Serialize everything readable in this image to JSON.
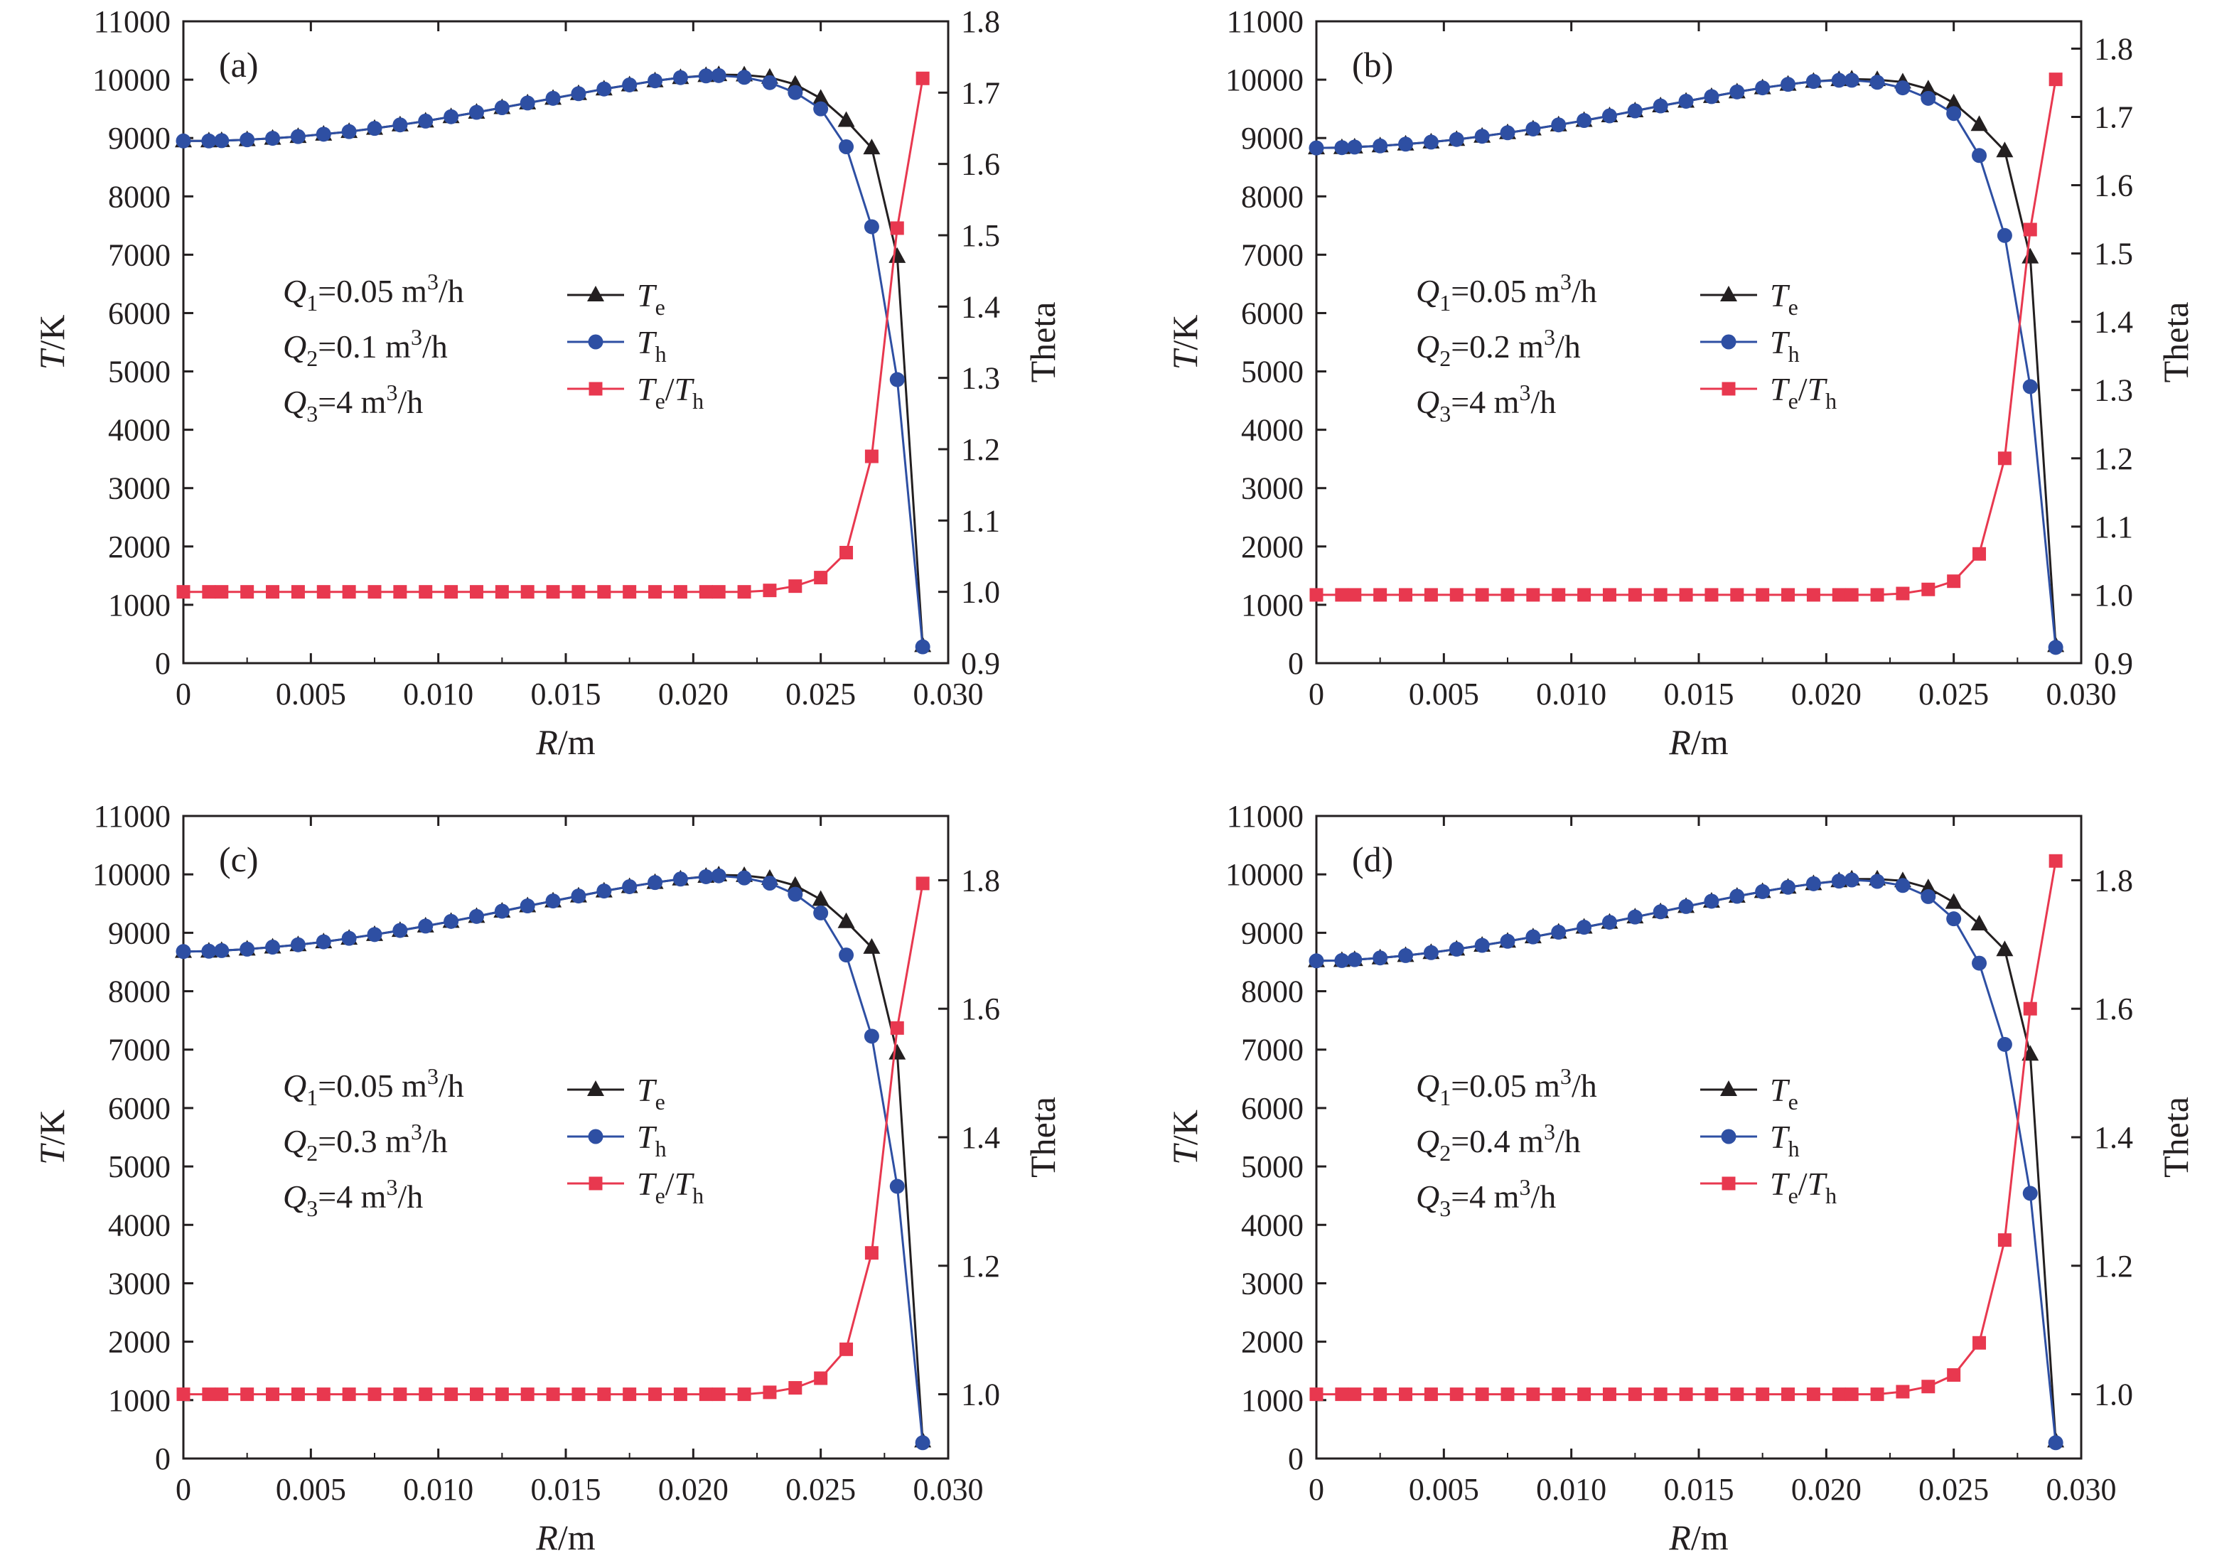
{
  "chart_data": [
    {
      "type": "line",
      "panel": "(a)",
      "xlabel": "R/m",
      "ylabel": "T/K",
      "y2label": "Theta",
      "xlim": [
        0,
        0.03
      ],
      "ylim": [
        0,
        11000
      ],
      "y2lim": [
        0.9,
        1.8
      ],
      "xticks": [
        "0",
        "0.005",
        "0.010",
        "0.015",
        "0.020",
        "0.025",
        "0.030"
      ],
      "yticks": [
        "0",
        "1000",
        "2000",
        "3000",
        "4000",
        "5000",
        "6000",
        "7000",
        "8000",
        "9000",
        "10000",
        "11000"
      ],
      "y2ticks": [
        "0.9",
        "1.0",
        "1.1",
        "1.2",
        "1.3",
        "1.4",
        "1.5",
        "1.6",
        "1.7",
        "1.8"
      ],
      "conditions": [
        {
          "q": "Q",
          "sub": "1",
          "val": "=0.05 m",
          "sup": "3",
          "unit": "/h"
        },
        {
          "q": "Q",
          "sub": "2",
          "val": "=0.1 m",
          "sup": "3",
          "unit": "/h"
        },
        {
          "q": "Q",
          "sub": "3",
          "val": "=4 m",
          "sup": "3",
          "unit": "/h"
        }
      ],
      "x": [
        0,
        0.001,
        0.0015,
        0.0025,
        0.0035,
        0.0045,
        0.0055,
        0.0065,
        0.0075,
        0.0085,
        0.0095,
        0.0105,
        0.0115,
        0.0125,
        0.0135,
        0.0145,
        0.0155,
        0.0165,
        0.0175,
        0.0185,
        0.0195,
        0.0205,
        0.021,
        0.022,
        0.023,
        0.024,
        0.025,
        0.026,
        0.027,
        0.028,
        0.029
      ],
      "series": [
        {
          "name": "Te",
          "axis": "left",
          "marker": "triangle",
          "color": "#231f20",
          "values": [
            8950,
            8950,
            8955,
            8970,
            8995,
            9025,
            9065,
            9110,
            9165,
            9225,
            9290,
            9365,
            9440,
            9520,
            9600,
            9680,
            9760,
            9840,
            9910,
            9980,
            10035,
            10070,
            10085,
            10080,
            10040,
            9920,
            9680,
            9300,
            8830,
            6970,
            300
          ]
        },
        {
          "name": "Th",
          "axis": "left",
          "marker": "circle",
          "color": "#2e4fa3",
          "values": [
            8950,
            8950,
            8955,
            8970,
            8995,
            9025,
            9065,
            9110,
            9165,
            9225,
            9290,
            9365,
            9440,
            9520,
            9600,
            9680,
            9760,
            9840,
            9910,
            9980,
            10035,
            10065,
            10070,
            10040,
            9950,
            9780,
            9500,
            8850,
            7480,
            4860,
            280
          ]
        },
        {
          "name": "Te/Th",
          "axis": "right",
          "marker": "square",
          "color": "#e8384f",
          "values": [
            1.0,
            1.0,
            1.0,
            1.0,
            1.0,
            1.0,
            1.0,
            1.0,
            1.0,
            1.0,
            1.0,
            1.0,
            1.0,
            1.0,
            1.0,
            1.0,
            1.0,
            1.0,
            1.0,
            1.0,
            1.0,
            1.0,
            1.0,
            1.0,
            1.002,
            1.008,
            1.02,
            1.055,
            1.19,
            1.51,
            1.72
          ]
        }
      ]
    },
    {
      "type": "line",
      "panel": "(b)",
      "xlabel": "R/m",
      "ylabel": "T/K",
      "y2label": "Theta",
      "xlim": [
        0,
        0.03
      ],
      "ylim": [
        0,
        11000
      ],
      "y2lim": [
        0.9,
        1.84
      ],
      "xticks": [
        "0",
        "0.005",
        "0.010",
        "0.015",
        "0.020",
        "0.025",
        "0.030"
      ],
      "yticks": [
        "0",
        "1000",
        "2000",
        "3000",
        "4000",
        "5000",
        "6000",
        "7000",
        "8000",
        "9000",
        "10000",
        "11000"
      ],
      "y2ticks": [
        "0.9",
        "1.0",
        "1.1",
        "1.2",
        "1.3",
        "1.4",
        "1.5",
        "1.6",
        "1.7",
        "1.8"
      ],
      "conditions": [
        {
          "q": "Q",
          "sub": "1",
          "val": "=0.05 m",
          "sup": "3",
          "unit": "/h"
        },
        {
          "q": "Q",
          "sub": "2",
          "val": "=0.2 m",
          "sup": "3",
          "unit": "/h"
        },
        {
          "q": "Q",
          "sub": "3",
          "val": "=4 m",
          "sup": "3",
          "unit": "/h"
        }
      ],
      "x": [
        0,
        0.001,
        0.0015,
        0.0025,
        0.0035,
        0.0045,
        0.0055,
        0.0065,
        0.0075,
        0.0085,
        0.0095,
        0.0105,
        0.0115,
        0.0125,
        0.0135,
        0.0145,
        0.0155,
        0.0165,
        0.0175,
        0.0185,
        0.0195,
        0.0205,
        0.021,
        0.022,
        0.023,
        0.024,
        0.025,
        0.026,
        0.027,
        0.028,
        0.029
      ],
      "series": [
        {
          "name": "Te",
          "axis": "left",
          "marker": "triangle",
          "color": "#231f20",
          "values": [
            8830,
            8835,
            8845,
            8865,
            8895,
            8930,
            8975,
            9030,
            9090,
            9155,
            9225,
            9300,
            9380,
            9465,
            9550,
            9630,
            9710,
            9790,
            9860,
            9920,
            9970,
            10000,
            10010,
            10000,
            9960,
            9840,
            9600,
            9230,
            8780,
            6960,
            300
          ]
        },
        {
          "name": "Th",
          "axis": "left",
          "marker": "circle",
          "color": "#2e4fa3",
          "values": [
            8830,
            8835,
            8845,
            8865,
            8895,
            8930,
            8975,
            9030,
            9090,
            9155,
            9225,
            9300,
            9380,
            9465,
            9550,
            9630,
            9710,
            9790,
            9860,
            9920,
            9970,
            9990,
            9990,
            9955,
            9860,
            9680,
            9420,
            8700,
            7330,
            4740,
            270
          ]
        },
        {
          "name": "Te/Th",
          "axis": "right",
          "marker": "square",
          "color": "#e8384f",
          "values": [
            1.0,
            1.0,
            1.0,
            1.0,
            1.0,
            1.0,
            1.0,
            1.0,
            1.0,
            1.0,
            1.0,
            1.0,
            1.0,
            1.0,
            1.0,
            1.0,
            1.0,
            1.0,
            1.0,
            1.0,
            1.0,
            1.0,
            1.0,
            1.0,
            1.002,
            1.008,
            1.02,
            1.06,
            1.2,
            1.535,
            1.755
          ]
        }
      ]
    },
    {
      "type": "line",
      "panel": "(c)",
      "xlabel": "R/m",
      "ylabel": "T/K",
      "y2label": "Theta",
      "xlim": [
        0,
        0.03
      ],
      "ylim": [
        0,
        11000
      ],
      "y2lim": [
        0.9,
        1.9
      ],
      "xticks": [
        "0",
        "0.005",
        "0.010",
        "0.015",
        "0.020",
        "0.025",
        "0.030"
      ],
      "yticks": [
        "0",
        "1000",
        "2000",
        "3000",
        "4000",
        "5000",
        "6000",
        "7000",
        "8000",
        "9000",
        "10000",
        "11000"
      ],
      "y2ticks": [
        "1.0",
        "1.2",
        "1.4",
        "1.6",
        "1.8"
      ],
      "conditions": [
        {
          "q": "Q",
          "sub": "1",
          "val": "=0.05 m",
          "sup": "3",
          "unit": "/h"
        },
        {
          "q": "Q",
          "sub": "2",
          "val": "=0.3 m",
          "sup": "3",
          "unit": "/h"
        },
        {
          "q": "Q",
          "sub": "3",
          "val": "=4 m",
          "sup": "3",
          "unit": "/h"
        }
      ],
      "x": [
        0,
        0.001,
        0.0015,
        0.0025,
        0.0035,
        0.0045,
        0.0055,
        0.0065,
        0.0075,
        0.0085,
        0.0095,
        0.0105,
        0.0115,
        0.0125,
        0.0135,
        0.0145,
        0.0155,
        0.0165,
        0.0175,
        0.0185,
        0.0195,
        0.0205,
        0.021,
        0.022,
        0.023,
        0.024,
        0.025,
        0.026,
        0.027,
        0.028,
        0.029
      ],
      "series": [
        {
          "name": "Te",
          "axis": "left",
          "marker": "triangle",
          "color": "#231f20",
          "values": [
            8680,
            8685,
            8695,
            8720,
            8755,
            8795,
            8845,
            8905,
            8970,
            9040,
            9115,
            9195,
            9280,
            9370,
            9460,
            9545,
            9630,
            9715,
            9790,
            9860,
            9920,
            9965,
            9990,
            9980,
            9930,
            9810,
            9570,
            9190,
            8750,
            6940,
            300
          ]
        },
        {
          "name": "Th",
          "axis": "left",
          "marker": "circle",
          "color": "#2e4fa3",
          "values": [
            8680,
            8685,
            8695,
            8720,
            8755,
            8795,
            8845,
            8905,
            8970,
            9040,
            9115,
            9195,
            9280,
            9370,
            9460,
            9545,
            9630,
            9715,
            9790,
            9860,
            9920,
            9960,
            9975,
            9940,
            9850,
            9660,
            9340,
            8620,
            7230,
            4660,
            270
          ]
        },
        {
          "name": "Te/Th",
          "axis": "right",
          "marker": "square",
          "color": "#e8384f",
          "values": [
            1.0,
            1.0,
            1.0,
            1.0,
            1.0,
            1.0,
            1.0,
            1.0,
            1.0,
            1.0,
            1.0,
            1.0,
            1.0,
            1.0,
            1.0,
            1.0,
            1.0,
            1.0,
            1.0,
            1.0,
            1.0,
            1.0,
            1.0,
            1.0,
            1.003,
            1.01,
            1.025,
            1.07,
            1.22,
            1.57,
            1.795
          ]
        }
      ]
    },
    {
      "type": "line",
      "panel": "(d)",
      "xlabel": "R/m",
      "ylabel": "T/K",
      "y2label": "Theta",
      "xlim": [
        0,
        0.03
      ],
      "ylim": [
        0,
        11000
      ],
      "y2lim": [
        0.9,
        1.9
      ],
      "xticks": [
        "0",
        "0.005",
        "0.010",
        "0.015",
        "0.020",
        "0.025",
        "0.030"
      ],
      "yticks": [
        "0",
        "1000",
        "2000",
        "3000",
        "4000",
        "5000",
        "6000",
        "7000",
        "8000",
        "9000",
        "10000",
        "11000"
      ],
      "y2ticks": [
        "1.0",
        "1.2",
        "1.4",
        "1.6",
        "1.8"
      ],
      "conditions": [
        {
          "q": "Q",
          "sub": "1",
          "val": "=0.05 m",
          "sup": "3",
          "unit": "/h"
        },
        {
          "q": "Q",
          "sub": "2",
          "val": "=0.4 m",
          "sup": "3",
          "unit": "/h"
        },
        {
          "q": "Q",
          "sub": "3",
          "val": "=4 m",
          "sup": "3",
          "unit": "/h"
        }
      ],
      "x": [
        0,
        0.001,
        0.0015,
        0.0025,
        0.0035,
        0.0045,
        0.0055,
        0.0065,
        0.0075,
        0.0085,
        0.0095,
        0.0105,
        0.0115,
        0.0125,
        0.0135,
        0.0145,
        0.0155,
        0.0165,
        0.0175,
        0.0185,
        0.0195,
        0.0205,
        0.021,
        0.022,
        0.023,
        0.024,
        0.025,
        0.026,
        0.027,
        0.028,
        0.029
      ],
      "series": [
        {
          "name": "Te",
          "axis": "left",
          "marker": "triangle",
          "color": "#231f20",
          "values": [
            8520,
            8525,
            8540,
            8570,
            8610,
            8660,
            8720,
            8785,
            8855,
            8930,
            9010,
            9095,
            9180,
            9270,
            9360,
            9450,
            9540,
            9625,
            9705,
            9780,
            9840,
            9890,
            9920,
            9920,
            9890,
            9770,
            9520,
            9150,
            8710,
            6920,
            300
          ]
        },
        {
          "name": "Th",
          "axis": "left",
          "marker": "circle",
          "color": "#2e4fa3",
          "values": [
            8520,
            8525,
            8540,
            8570,
            8610,
            8660,
            8720,
            8785,
            8855,
            8930,
            9010,
            9095,
            9180,
            9270,
            9360,
            9450,
            9540,
            9625,
            9705,
            9780,
            9840,
            9885,
            9905,
            9880,
            9810,
            9620,
            9240,
            8480,
            7090,
            4540,
            270
          ]
        },
        {
          "name": "Te/Th",
          "axis": "right",
          "marker": "square",
          "color": "#e8384f",
          "values": [
            1.0,
            1.0,
            1.0,
            1.0,
            1.0,
            1.0,
            1.0,
            1.0,
            1.0,
            1.0,
            1.0,
            1.0,
            1.0,
            1.0,
            1.0,
            1.0,
            1.0,
            1.0,
            1.0,
            1.0,
            1.0,
            1.0,
            1.0,
            1.0,
            1.004,
            1.012,
            1.03,
            1.08,
            1.24,
            1.6,
            1.83
          ]
        }
      ]
    }
  ]
}
